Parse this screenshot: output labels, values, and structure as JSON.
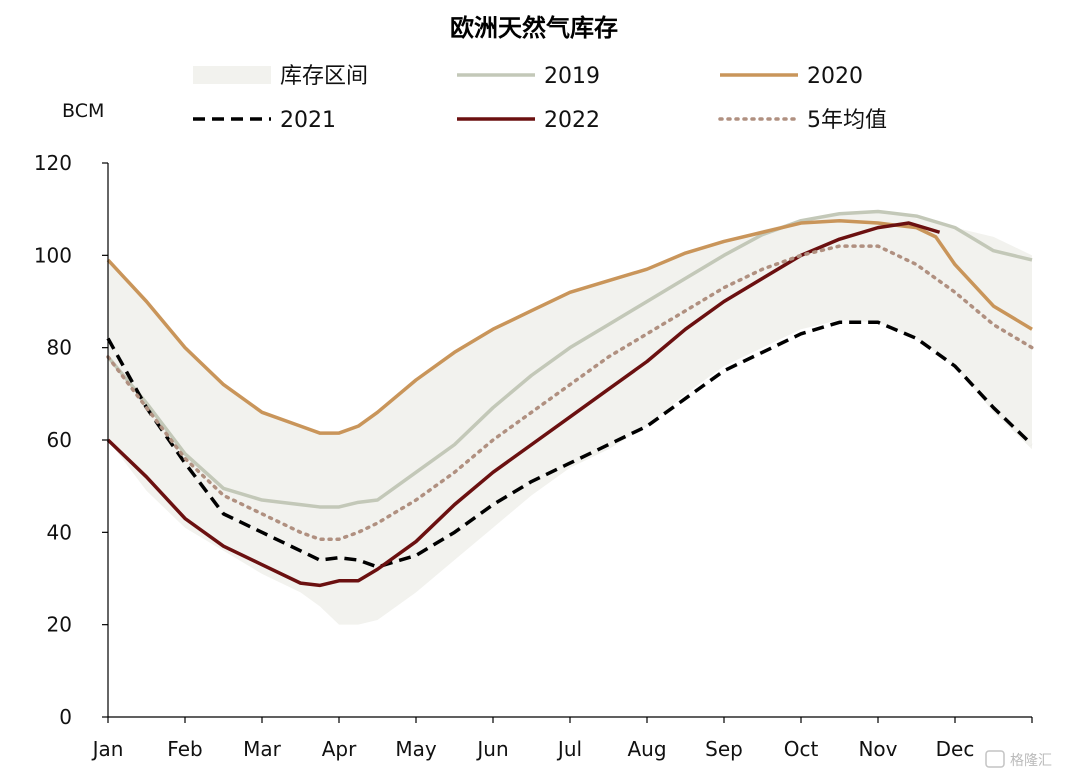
{
  "chart_data": {
    "type": "line",
    "title": "欧洲天然气库存",
    "ylabel": "BCM",
    "xlabel": "",
    "ylim": [
      0,
      120
    ],
    "yticks": [
      0,
      20,
      40,
      60,
      80,
      100,
      120
    ],
    "xlim": [
      1,
      13
    ],
    "months": [
      "Jan",
      "Feb",
      "Mar",
      "Apr",
      "May",
      "Jun",
      "Jul",
      "Aug",
      "Sep",
      "Oct",
      "Nov",
      "Dec"
    ],
    "grid": false,
    "legend_position": "top",
    "band": {
      "name": "库存区间",
      "color": "#f2f2ee",
      "x": [
        1.0,
        1.5,
        2.0,
        2.5,
        3.0,
        3.5,
        3.75,
        4.0,
        4.25,
        4.5,
        5.0,
        5.5,
        6.0,
        6.5,
        7.0,
        7.5,
        8.0,
        8.5,
        9.0,
        9.5,
        10.0,
        10.5,
        11.0,
        11.5,
        12.0,
        12.5,
        13.0
      ],
      "upper": [
        99,
        90,
        80,
        72,
        66,
        63,
        61.5,
        61,
        63,
        66,
        73,
        79,
        84,
        88,
        92,
        94.5,
        97,
        100.5,
        103,
        105.5,
        107.5,
        109,
        109.5,
        108,
        106,
        104,
        100
      ],
      "lower": [
        60,
        49,
        41,
        36,
        31,
        27,
        24,
        20,
        20,
        21,
        27,
        34,
        41,
        48,
        54,
        58,
        63,
        70,
        76,
        80,
        84,
        86,
        85.5,
        82,
        76,
        66,
        58
      ]
    },
    "series": [
      {
        "name": "2019",
        "color": "#c3c8b8",
        "style": "solid",
        "width": 3.5,
        "x": [
          1.0,
          1.5,
          2.0,
          2.5,
          3.0,
          3.5,
          3.75,
          4.0,
          4.25,
          4.5,
          5.0,
          5.5,
          6.0,
          6.5,
          7.0,
          7.5,
          8.0,
          8.5,
          9.0,
          9.5,
          10.0,
          10.5,
          11.0,
          11.5,
          12.0,
          12.5,
          13.0
        ],
        "values": [
          78,
          68,
          57,
          49.5,
          47,
          46,
          45.5,
          45.5,
          46.5,
          47,
          53,
          59,
          67,
          74,
          80,
          85,
          90,
          95,
          100,
          104.5,
          107.5,
          109,
          109.5,
          108.5,
          106,
          101,
          99
        ]
      },
      {
        "name": "2020",
        "color": "#c9955a",
        "style": "solid",
        "width": 3.5,
        "x": [
          1.0,
          1.5,
          2.0,
          2.5,
          3.0,
          3.5,
          3.75,
          4.0,
          4.25,
          4.5,
          5.0,
          5.5,
          6.0,
          6.5,
          7.0,
          7.5,
          8.0,
          8.5,
          9.0,
          9.5,
          10.0,
          10.5,
          11.0,
          11.5,
          11.75,
          12.0,
          12.5,
          13.0
        ],
        "values": [
          99,
          90,
          80,
          72,
          66,
          63,
          61.5,
          61.5,
          63,
          66,
          73,
          79,
          84,
          88,
          92,
          94.5,
          97,
          100.5,
          103,
          105,
          107,
          107.5,
          107,
          106,
          104,
          98,
          89,
          84
        ]
      },
      {
        "name": "2021",
        "color": "#000000",
        "style": "dashed",
        "width": 3.5,
        "x": [
          1.0,
          1.5,
          2.0,
          2.5,
          3.0,
          3.5,
          3.75,
          4.0,
          4.25,
          4.5,
          5.0,
          5.5,
          6.0,
          6.5,
          7.0,
          7.5,
          8.0,
          8.5,
          9.0,
          9.5,
          10.0,
          10.5,
          11.0,
          11.5,
          12.0,
          12.5,
          13.0
        ],
        "values": [
          82,
          67,
          55,
          44,
          40,
          36,
          34,
          34.5,
          34,
          32.5,
          35,
          40,
          46,
          51,
          55,
          59,
          63,
          69,
          75,
          79,
          83,
          85.5,
          85.5,
          82,
          76,
          67,
          59
        ]
      },
      {
        "name": "2022",
        "color": "#6b1010",
        "style": "solid",
        "width": 3.5,
        "x": [
          1.0,
          1.5,
          2.0,
          2.5,
          3.0,
          3.5,
          3.75,
          4.0,
          4.25,
          4.5,
          5.0,
          5.5,
          6.0,
          6.5,
          7.0,
          7.5,
          8.0,
          8.5,
          9.0,
          9.5,
          10.0,
          10.5,
          11.0,
          11.4,
          11.6,
          11.8
        ],
        "values": [
          60,
          52,
          43,
          37,
          33,
          29,
          28.5,
          29.5,
          29.5,
          32,
          38,
          46,
          53,
          59,
          65,
          71,
          77,
          84,
          90,
          95,
          100,
          103.5,
          106,
          107,
          106,
          105
        ]
      },
      {
        "name": "5年均值",
        "color": "#b09080",
        "style": "dotted",
        "width": 3.5,
        "x": [
          1.0,
          1.5,
          2.0,
          2.5,
          3.0,
          3.5,
          3.75,
          4.0,
          4.25,
          4.5,
          5.0,
          5.5,
          6.0,
          6.5,
          7.0,
          7.5,
          8.0,
          8.5,
          9.0,
          9.5,
          10.0,
          10.5,
          11.0,
          11.5,
          12.0,
          12.5,
          13.0
        ],
        "values": [
          78,
          67,
          56,
          48,
          44,
          40,
          38.5,
          38.5,
          40,
          42,
          47,
          53,
          60,
          66,
          72,
          78,
          83,
          88,
          93,
          97,
          100,
          102,
          102,
          98,
          92,
          85,
          80
        ]
      }
    ]
  },
  "watermark": "格隆汇"
}
